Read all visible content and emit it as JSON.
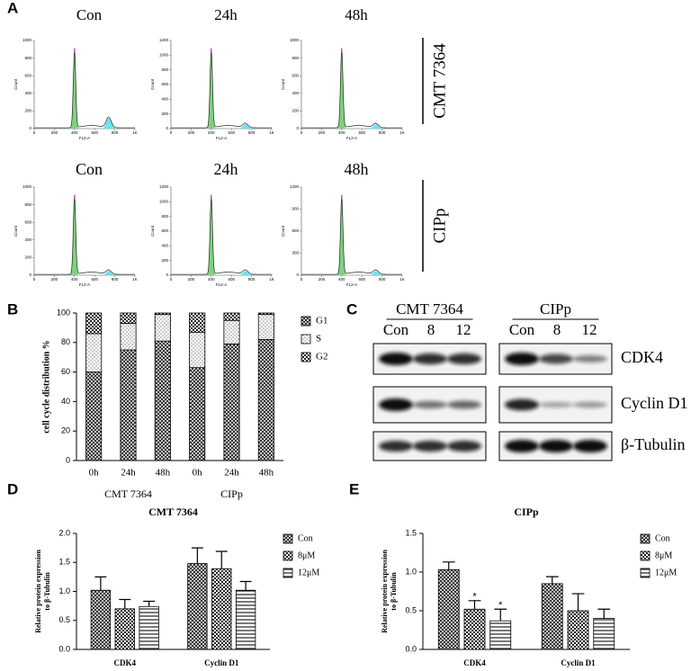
{
  "panel_labels": [
    "A",
    "B",
    "C",
    "D",
    "E"
  ],
  "flow": {
    "xlabel": "FL2-A",
    "ylabel": "Count",
    "xlim": [
      0,
      1000
    ],
    "xticks": [
      0,
      200,
      400,
      600,
      800,
      {
        "value": 1000,
        "label": "1K"
      }
    ],
    "rows": [
      {
        "name": "CMT 7364",
        "plots": [
          {
            "title": "Con",
            "ylim": [
              0,
              1000
            ],
            "yticks": [
              0,
              200,
              400,
              600,
              800,
              1000
            ]
          },
          {
            "title": "24h",
            "ylim": [
              0,
              1200
            ],
            "yticks": [
              0,
              200,
              400,
              600,
              800,
              1000,
              1200
            ]
          },
          {
            "title": "48h",
            "ylim": [
              0,
              1000
            ],
            "yticks": [
              0,
              200,
              400,
              600,
              800,
              1000
            ]
          }
        ]
      },
      {
        "name": "CIPp",
        "plots": [
          {
            "title": "Con",
            "ylim": [
              0,
              1000
            ],
            "yticks": [
              0,
              200,
              400,
              600,
              800,
              1000
            ]
          },
          {
            "title": "24h",
            "ylim": [
              0,
              1200
            ],
            "yticks": [
              0,
              200,
              400,
              600,
              800,
              1000,
              1200
            ]
          },
          {
            "title": "48h",
            "ylim": [
              0,
              1200
            ],
            "yticks": [
              0,
              300,
              600,
              900,
              1200
            ]
          }
        ]
      }
    ]
  },
  "blot": {
    "groups": [
      {
        "name": "CMT 7364",
        "lanes": [
          "Con",
          "8",
          "12"
        ]
      },
      {
        "name": "CIPp",
        "lanes": [
          "Con",
          "8",
          "12"
        ]
      }
    ],
    "proteins": [
      "CDK4",
      "Cyclin D1",
      "β-Tubulin"
    ]
  },
  "chart_data": [
    {
      "type": "stacked_bar",
      "ylabel": "cell cycle distribution %",
      "categories": [
        "0h",
        "24h",
        "48h",
        "0h",
        "24h",
        "48h"
      ],
      "group_labels": [
        "CMT 7364",
        "CIPp"
      ],
      "ylim": [
        0,
        100
      ],
      "yticks": [
        0,
        20,
        40,
        60,
        80,
        100
      ],
      "series": [
        {
          "name": "G1",
          "pattern": "crosshatch",
          "values": [
            60,
            75,
            81,
            63,
            79,
            82
          ]
        },
        {
          "name": "S",
          "pattern": "dots",
          "values": [
            26,
            18,
            18,
            24,
            16,
            17
          ]
        },
        {
          "name": "G2",
          "pattern": "checker",
          "values": [
            14,
            7,
            1,
            13,
            5,
            1
          ]
        }
      ]
    },
    {
      "type": "bar",
      "title": "CMT 7364",
      "ylabel": [
        "Relative protein expression",
        "to β-Tubulin"
      ],
      "categories": [
        "CDK4",
        "Cyclin D1"
      ],
      "ylim": [
        0,
        2
      ],
      "yticks": [
        {
          "value": 0,
          "label": "0.0"
        },
        0.5,
        {
          "value": 1,
          "label": "1.0"
        },
        1.5,
        {
          "value": 2,
          "label": "2.0"
        }
      ],
      "series": [
        {
          "name": "Con",
          "pattern": "crosshatch",
          "values": [
            1.02,
            1.48
          ],
          "errors": [
            0.23,
            0.27
          ]
        },
        {
          "name": "8μM",
          "pattern": "checker",
          "values": [
            0.7,
            1.39
          ],
          "errors": [
            0.16,
            0.3
          ]
        },
        {
          "name": "12μM",
          "pattern": "hlines",
          "values": [
            0.74,
            1.02
          ],
          "errors": [
            0.09,
            0.15
          ]
        }
      ]
    },
    {
      "type": "bar",
      "title": "CIPp",
      "ylabel": [
        "Relative protein expression",
        "to β-Tubulin"
      ],
      "categories": [
        "CDK4",
        "Cyclin D1"
      ],
      "ylim": [
        0,
        1.5
      ],
      "yticks": [
        {
          "value": 0,
          "label": "0.0"
        },
        0.5,
        {
          "value": 1,
          "label": "1.0"
        },
        1.5
      ],
      "series": [
        {
          "name": "Con",
          "pattern": "crosshatch",
          "values": [
            1.03,
            0.85
          ],
          "errors": [
            0.1,
            0.09
          ]
        },
        {
          "name": "8μM",
          "pattern": "checker",
          "values": [
            0.52,
            0.5
          ],
          "errors": [
            0.11,
            0.22
          ],
          "significance": [
            "*",
            null
          ]
        },
        {
          "name": "12μM",
          "pattern": "hlines",
          "values": [
            0.37,
            0.4
          ],
          "errors": [
            0.15,
            0.12
          ],
          "significance": [
            "*",
            null
          ]
        }
      ]
    }
  ]
}
